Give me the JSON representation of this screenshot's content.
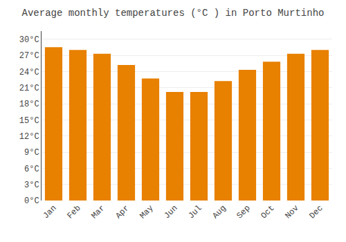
{
  "chart_data": {
    "type": "bar",
    "title": "Average monthly temperatures (°C ) in Porto Murtinho",
    "categories": [
      "Jan",
      "Feb",
      "Mar",
      "Apr",
      "May",
      "Jun",
      "Jul",
      "Aug",
      "Sep",
      "Oct",
      "Nov",
      "Dec"
    ],
    "values": [
      28.5,
      28.0,
      27.3,
      25.2,
      22.7,
      20.2,
      20.2,
      22.2,
      24.3,
      25.8,
      27.3,
      28.0
    ],
    "color": "#E88000",
    "ylim": [
      0,
      31.5
    ],
    "yticks": [
      {
        "value": 0,
        "label": "0°C"
      },
      {
        "value": 3,
        "label": "3°C"
      },
      {
        "value": 6,
        "label": "6°C"
      },
      {
        "value": 9,
        "label": "9°C"
      },
      {
        "value": 12,
        "label": "12°C"
      },
      {
        "value": 15,
        "label": "15°C"
      },
      {
        "value": 18,
        "label": "18°C"
      },
      {
        "value": 21,
        "label": "21°C"
      },
      {
        "value": 24,
        "label": "24°C"
      },
      {
        "value": 27,
        "label": "27°C"
      },
      {
        "value": 30,
        "label": "30°C"
      }
    ],
    "grid": true
  }
}
